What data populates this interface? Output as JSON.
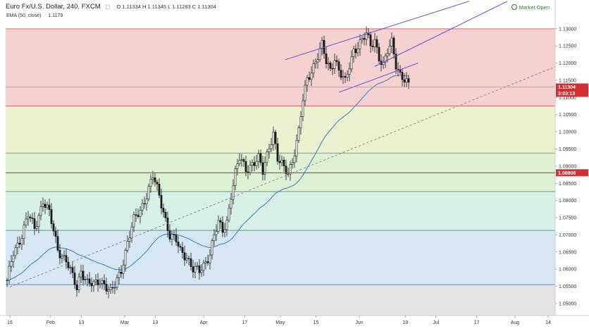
{
  "header": {
    "title": "Euro Fx/U.S. Dollar, 240, FXCM",
    "ohlc": "O 1.11334 H 1.11345 L 1.11283 C 1.11304",
    "ema": "EMA (50, close)",
    "ema_value": "1.1179",
    "market_status": "Market Open"
  },
  "colors": {
    "price_box": "#d32f2f",
    "time_box": "#d32f2f",
    "level_box": "#d32f2f",
    "candle": "#1b1b1b",
    "ema": "#2f7fc1",
    "trend": "#5c4fd0",
    "dashed": "#777777"
  },
  "chart_data": {
    "type": "candlestick",
    "symbol": "Euro Fx/U.S. Dollar",
    "timeframe": "240",
    "source": "FXCM",
    "y_range": [
      1.0465,
      1.1355
    ],
    "y_ticks": [
      "1.13000",
      "1.12500",
      "1.12000",
      "1.11500",
      "1.11000",
      "1.10500",
      "1.10000",
      "1.09500",
      "1.09000",
      "1.08500",
      "1.08000",
      "1.07500",
      "1.07000",
      "1.06500",
      "1.06000",
      "1.05500",
      "1.05000"
    ],
    "x_ticks": [
      "16",
      "Feb",
      "13",
      "Mar",
      "13",
      "Apr",
      "17",
      "May",
      "15",
      "Jun",
      "19",
      "Jul",
      "17",
      "Aug",
      "14"
    ],
    "current_price": "1.11304",
    "countdown": "3:03:13",
    "level_label": "1.08806",
    "level": 1.08806,
    "zones": [
      {
        "from": 1.1075,
        "to": 1.13,
        "color": "#f5d1d1"
      },
      {
        "from": 1.0938,
        "to": 1.1075,
        "color": "#ecf2d0"
      },
      {
        "from": 1.0826,
        "to": 1.0938,
        "color": "#dff1d5"
      },
      {
        "from": 1.0713,
        "to": 1.0826,
        "color": "#d9f0e6"
      },
      {
        "from": 1.0555,
        "to": 1.0713,
        "color": "#d7e7f2"
      },
      {
        "from": 1.0465,
        "to": 1.0555,
        "color": "#e4e4e4"
      }
    ],
    "zone_lines": [
      {
        "price": 1.13,
        "color": "#d66a6a"
      },
      {
        "price": 1.1075,
        "color": "#d66a6a"
      },
      {
        "price": 1.0938,
        "color": "#8aa55a"
      },
      {
        "price": 1.0826,
        "color": "#5aa06a"
      },
      {
        "price": 1.0713,
        "color": "#4aa3a0"
      },
      {
        "price": 1.0555,
        "color": "#5a8fc0"
      }
    ],
    "anchors": [
      [
        0,
        1.056
      ],
      [
        3,
        1.065
      ],
      [
        7,
        1.07
      ],
      [
        10,
        1.0755
      ],
      [
        13,
        1.072
      ],
      [
        17,
        1.08
      ],
      [
        20,
        1.076
      ],
      [
        24,
        1.066
      ],
      [
        28,
        1.0625
      ],
      [
        30,
        1.059
      ],
      [
        33,
        1.0545
      ],
      [
        35,
        1.06
      ],
      [
        38,
        1.056
      ],
      [
        41,
        1.055
      ],
      [
        44,
        1.057
      ],
      [
        46,
        1.056
      ],
      [
        49,
        1.053
      ],
      [
        51,
        1.055
      ],
      [
        54,
        1.06
      ],
      [
        57,
        1.068
      ],
      [
        60,
        1.074
      ],
      [
        63,
        1.077
      ],
      [
        66,
        1.082
      ],
      [
        69,
        1.087
      ],
      [
        71,
        1.083
      ],
      [
        74,
        1.077
      ],
      [
        77,
        1.07
      ],
      [
        80,
        1.068
      ],
      [
        82,
        1.065
      ],
      [
        85,
        1.064
      ],
      [
        88,
        1.06
      ],
      [
        91,
        1.059
      ],
      [
        93,
        1.061
      ],
      [
        96,
        1.065
      ],
      [
        98,
        1.07
      ],
      [
        100,
        1.073
      ],
      [
        102,
        1.071
      ],
      [
        104,
        1.074
      ],
      [
        106,
        1.082
      ],
      [
        108,
        1.088
      ],
      [
        110,
        1.092
      ],
      [
        113,
        1.089
      ],
      [
        116,
        1.091
      ],
      [
        119,
        1.092
      ],
      [
        121,
        1.088
      ],
      [
        124,
        1.096
      ],
      [
        126,
        1.1
      ],
      [
        128,
        1.092
      ],
      [
        131,
        1.089
      ],
      [
        133,
        1.088
      ],
      [
        135,
        1.092
      ],
      [
        138,
        1.1
      ],
      [
        140,
        1.109
      ],
      [
        142,
        1.115
      ],
      [
        144,
        1.118
      ],
      [
        146,
        1.121
      ],
      [
        149,
        1.125
      ],
      [
        151,
        1.12
      ],
      [
        153,
        1.118
      ],
      [
        155,
        1.122
      ],
      [
        157,
        1.118
      ],
      [
        160,
        1.114
      ],
      [
        162,
        1.119
      ],
      [
        164,
        1.124
      ],
      [
        167,
        1.126
      ],
      [
        170,
        1.128
      ],
      [
        172,
        1.125
      ],
      [
        174,
        1.127
      ],
      [
        176,
        1.122
      ],
      [
        178,
        1.119
      ],
      [
        180,
        1.123
      ],
      [
        182,
        1.126
      ],
      [
        184,
        1.12
      ],
      [
        186,
        1.117
      ],
      [
        188,
        1.115
      ],
      [
        190,
        1.113
      ]
    ],
    "ema_value": 1.1179,
    "trendlines": [
      {
        "from": [
          "2016-05-03",
          1.121
        ],
        "to": [
          "2016-07-14",
          1.138
        ],
        "style": "solid"
      },
      {
        "from": [
          "2016-05-24",
          1.1115
        ],
        "to": [
          "2016-06-24",
          1.12
        ],
        "style": "solid"
      },
      {
        "from": [
          "2016-06-07",
          1.119
        ],
        "to": [
          "2016-07-29",
          1.138
        ],
        "style": "solid"
      },
      {
        "from": [
          "2016-01-16",
          1.0548
        ],
        "to": [
          "2016-08-17",
          1.119
        ],
        "style": "dashed"
      }
    ]
  }
}
